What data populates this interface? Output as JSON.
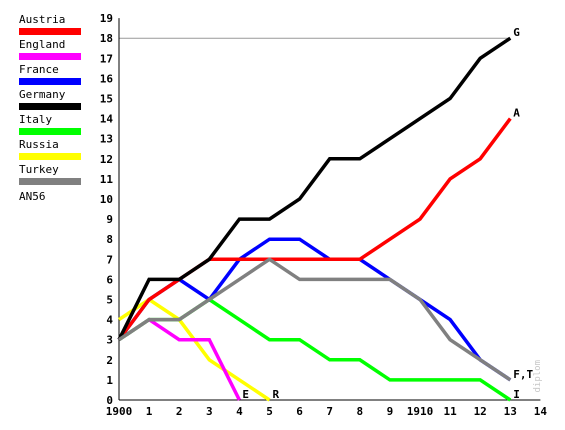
{
  "chart_data": {
    "type": "line",
    "title": "",
    "xlabel": "",
    "ylabel": "",
    "x": [
      0,
      1,
      2,
      3,
      4,
      5,
      6,
      7,
      8,
      9,
      10,
      11,
      12,
      13
    ],
    "x_tick_labels": [
      "1900",
      "1",
      "2",
      "3",
      "4",
      "5",
      "6",
      "7",
      "8",
      "9",
      "1910",
      "11",
      "12",
      "13",
      "14"
    ],
    "xlim": [
      0,
      14
    ],
    "ylim": [
      0,
      19
    ],
    "y_ticks": [
      0,
      1,
      2,
      3,
      4,
      5,
      6,
      7,
      8,
      9,
      10,
      11,
      12,
      13,
      14,
      15,
      16,
      17,
      18,
      19
    ],
    "reference_line": 18,
    "grid": false,
    "legend_position": "left",
    "legend_note": "AN56",
    "series": [
      {
        "name": "Austria",
        "color": "#ff0000",
        "x": [
          0,
          1,
          2,
          3,
          4,
          5,
          6,
          7,
          8,
          9,
          10,
          11,
          12,
          13
        ],
        "values": [
          3,
          5,
          6,
          7,
          7,
          7,
          7,
          7,
          7,
          8,
          9,
          11,
          12,
          14
        ],
        "end_label": "A"
      },
      {
        "name": "England",
        "color": "#ff00ff",
        "x": [
          0,
          1,
          2,
          3,
          4
        ],
        "values": [
          3,
          4,
          3,
          3,
          0
        ],
        "end_label": "E"
      },
      {
        "name": "France",
        "color": "#0000ff",
        "x": [
          0,
          1,
          2,
          3,
          4,
          5,
          6,
          7,
          8,
          9,
          10,
          11,
          12,
          13
        ],
        "values": [
          3,
          5,
          6,
          5,
          7,
          8,
          8,
          7,
          7,
          6,
          5,
          4,
          2,
          1
        ],
        "end_label": ""
      },
      {
        "name": "Germany",
        "color": "#000000",
        "x": [
          0,
          1,
          2,
          3,
          4,
          5,
          6,
          7,
          8,
          9,
          10,
          11,
          12,
          13
        ],
        "values": [
          3,
          6,
          6,
          7,
          9,
          9,
          10,
          12,
          12,
          13,
          14,
          15,
          17,
          18
        ],
        "end_label": "G"
      },
      {
        "name": "Italy",
        "color": "#00ff00",
        "x": [
          0,
          1,
          2,
          3,
          4,
          5,
          6,
          7,
          8,
          9,
          10,
          11,
          12,
          13
        ],
        "values": [
          3,
          4,
          4,
          5,
          4,
          3,
          3,
          2,
          2,
          1,
          1,
          1,
          1,
          0
        ],
        "end_label": "I"
      },
      {
        "name": "Russia",
        "color": "#ffff00",
        "x": [
          0,
          1,
          2,
          3,
          4,
          5
        ],
        "values": [
          4,
          5,
          4,
          2,
          1,
          0
        ],
        "end_label": "R"
      },
      {
        "name": "Turkey",
        "color": "#808080",
        "x": [
          0,
          1,
          2,
          3,
          4,
          5,
          6,
          7,
          8,
          9,
          10,
          11,
          12,
          13
        ],
        "values": [
          3,
          4,
          4,
          5,
          6,
          7,
          6,
          6,
          6,
          6,
          5,
          3,
          2,
          1
        ],
        "end_label": "F,T"
      }
    ]
  },
  "watermark": "diplom"
}
